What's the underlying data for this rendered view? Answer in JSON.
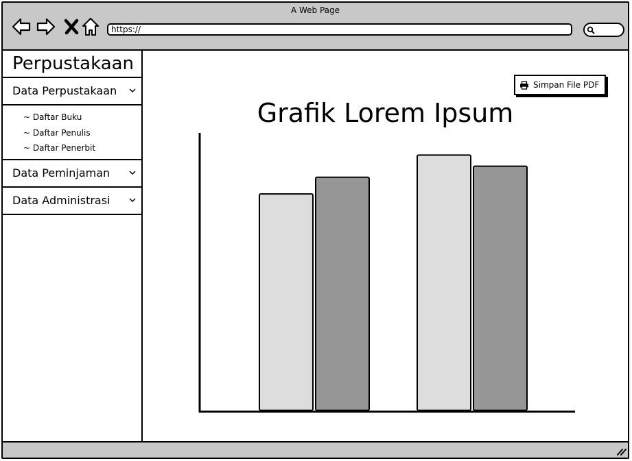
{
  "browser": {
    "title": "A Web Page",
    "url": "https://",
    "icons": [
      "back-icon",
      "forward-icon",
      "close-icon",
      "home-icon",
      "search-icon"
    ]
  },
  "sidebar": {
    "brand": "Perpustakaan",
    "menus": [
      {
        "label": "Data Perpustakaan",
        "items": [
          "~ Daftar Buku",
          "~ Daftar Penulis",
          "~ Daftar Penerbit"
        ]
      },
      {
        "label": "Data Peminjaman"
      },
      {
        "label": "Data Administrasi"
      }
    ]
  },
  "main": {
    "pdf_button": "Simpan File PDF"
  },
  "chart_data": {
    "type": "bar",
    "title": "Grafik Lorem Ipsum",
    "categories": [
      "",
      ""
    ],
    "series": [
      {
        "values": [
          78,
          92
        ],
        "color": "#dddddd"
      },
      {
        "values": [
          84,
          88
        ],
        "color": "#969696"
      }
    ],
    "ylim": [
      0,
      100
    ],
    "grid": false
  }
}
